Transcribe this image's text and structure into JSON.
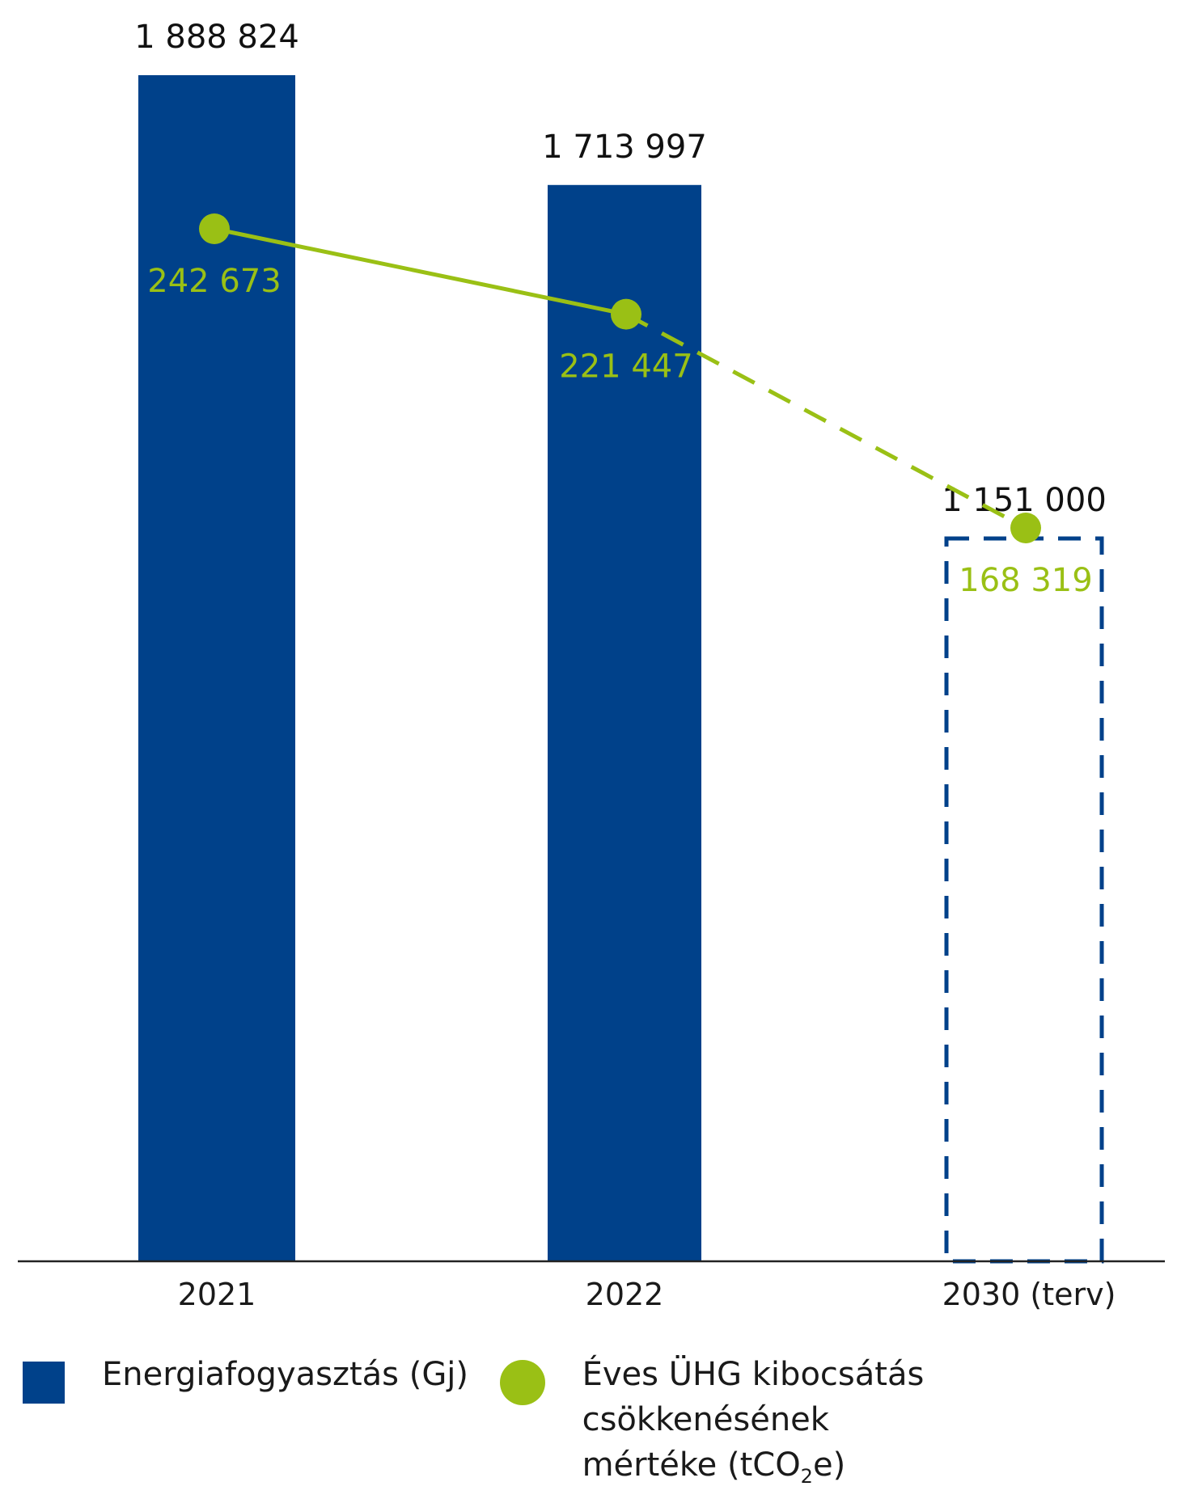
{
  "chart_data": {
    "type": "bar",
    "categories": [
      "2021",
      "2022",
      "2030 (terv)"
    ],
    "series": [
      {
        "name": "Energiafogyasztás (Gj)",
        "kind": "bar",
        "color": "#00418a",
        "values": [
          1888824,
          1713997,
          1151000
        ],
        "labels": [
          "1 888 824",
          "1 713 997",
          "1 151 000"
        ],
        "planned": [
          false,
          false,
          true
        ]
      },
      {
        "name": "Éves ÜHG kibocsátás csökkenésének mértéke (tCO₂e)",
        "kind": "line",
        "color": "#9ac015",
        "values": [
          242673,
          221447,
          168319
        ],
        "labels": [
          "242 673",
          "221 447",
          "168 319"
        ],
        "dashed_from_index": 1
      }
    ],
    "title": "",
    "xlabel": "",
    "ylabel": "",
    "grid": false,
    "legend_position": "bottom"
  },
  "legend": {
    "bar_label_main": "Energiafogyasztás (Gj)",
    "line_label_part1": "Éves ÜHG kibocsátás csökkenésének",
    "line_label_part2a": "mértéke  (tCO",
    "line_label_sub": "2",
    "line_label_part2b": "e)"
  }
}
